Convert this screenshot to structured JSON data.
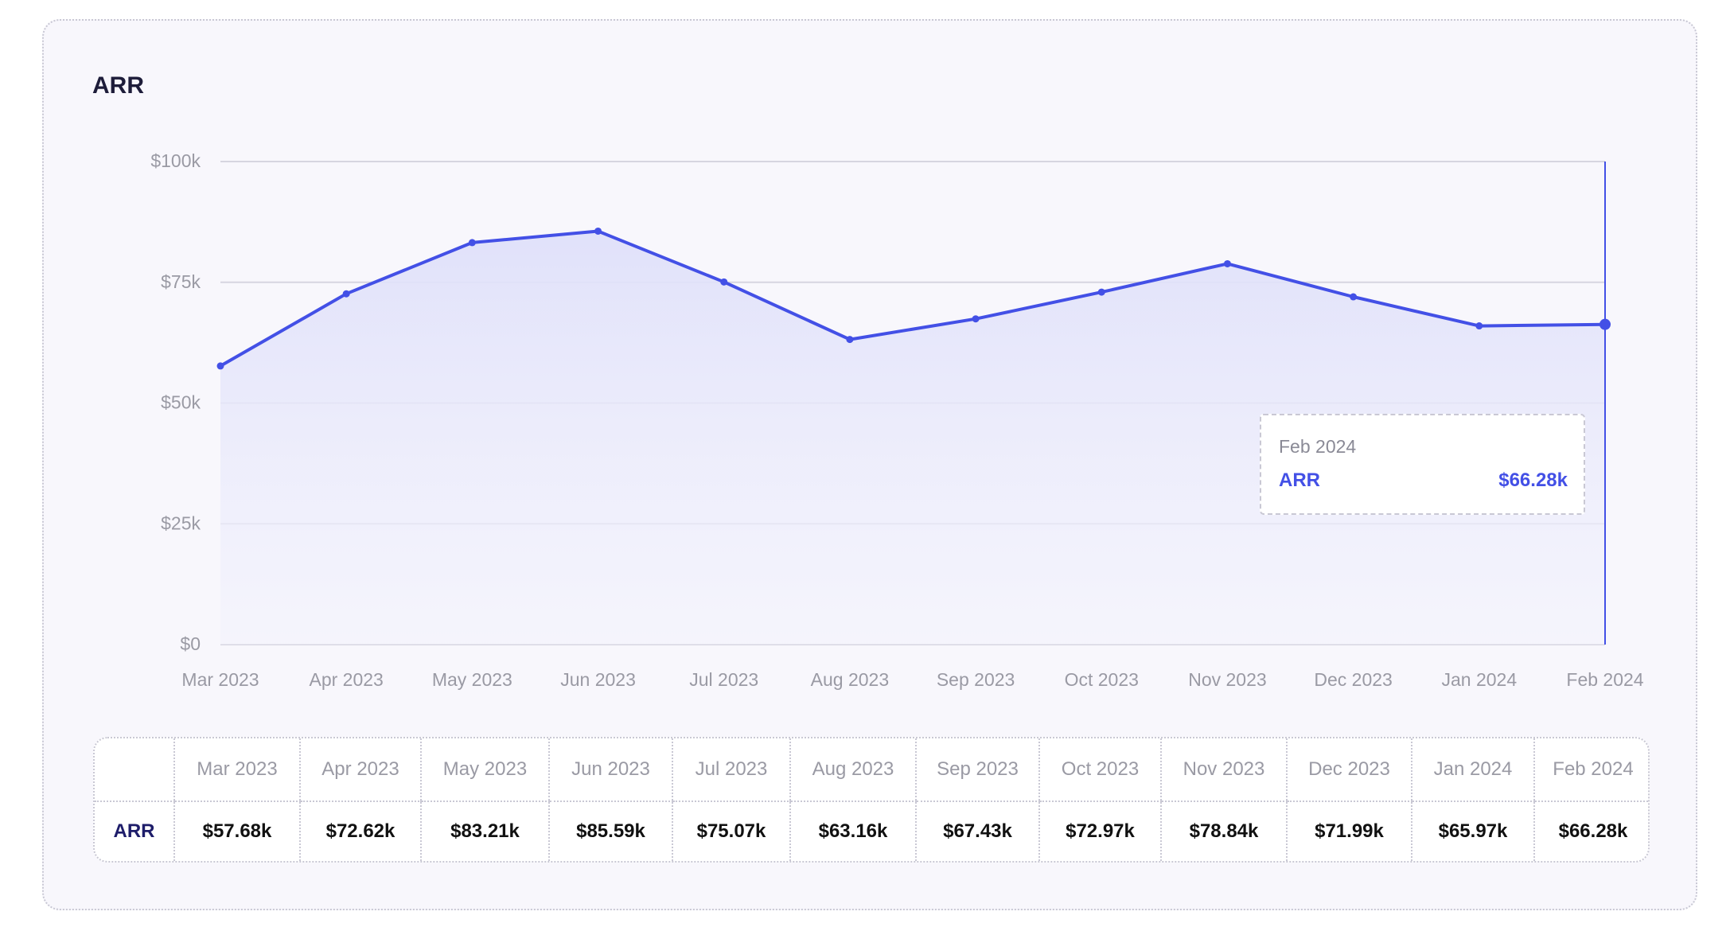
{
  "card": {
    "title": "ARR"
  },
  "chart_data": {
    "type": "area",
    "title": "ARR",
    "categories": [
      "Mar 2023",
      "Apr 2023",
      "May 2023",
      "Jun 2023",
      "Jul 2023",
      "Aug 2023",
      "Sep 2023",
      "Oct 2023",
      "Nov 2023",
      "Dec 2023",
      "Jan 2024",
      "Feb 2024"
    ],
    "series": [
      {
        "name": "ARR",
        "values": [
          57.68,
          72.62,
          83.21,
          85.59,
          75.07,
          63.16,
          67.43,
          72.97,
          78.84,
          71.99,
          65.97,
          66.28
        ]
      }
    ],
    "yticks": [
      "$0",
      "$25k",
      "$50k",
      "$75k",
      "$100k"
    ],
    "ylim": [
      0,
      100
    ],
    "grid": true,
    "colors": {
      "line": "#4350e6",
      "fill": "#e4e5fb",
      "grid": "#d6d5e0"
    }
  },
  "tooltip": {
    "date": "Feb 2024",
    "series_name": "ARR",
    "value": "$66.28k"
  },
  "table": {
    "headers": [
      "Mar 2023",
      "Apr 2023",
      "May 2023",
      "Jun 2023",
      "Jul 2023",
      "Aug 2023",
      "Sep 2023",
      "Oct 2023",
      "Nov 2023",
      "Dec 2023",
      "Jan 2024",
      "Feb 2024"
    ],
    "row_name": "ARR",
    "values": [
      "$57.68k",
      "$72.62k",
      "$83.21k",
      "$85.59k",
      "$75.07k",
      "$63.16k",
      "$67.43k",
      "$72.97k",
      "$78.84k",
      "$71.99k",
      "$65.97k",
      "$66.28k"
    ]
  }
}
